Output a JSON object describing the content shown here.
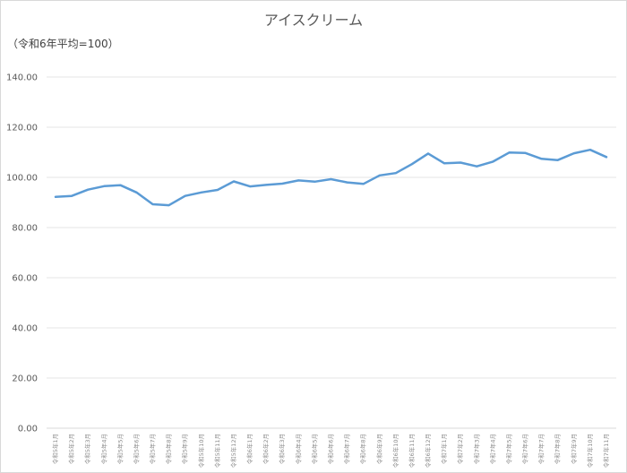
{
  "chart_data": {
    "type": "line",
    "title": "アイスクリーム",
    "subtitle": "（令和6年平均=100）",
    "xlabel": "",
    "ylabel": "",
    "ylim": [
      0,
      140
    ],
    "yticks": [
      0,
      20,
      40,
      60,
      80,
      100,
      120,
      140
    ],
    "ytick_labels": [
      "0.00",
      "20.00",
      "40.00",
      "60.00",
      "80.00",
      "100.00",
      "120.00",
      "140.00"
    ],
    "grid": true,
    "legend": "none",
    "color": "#5b9bd5",
    "categories": [
      "令和5年1月",
      "令和5年2月",
      "令和5年3月",
      "令和5年4月",
      "令和5年5月",
      "令和5年6月",
      "令和5年7月",
      "令和5年8月",
      "令和5年9月",
      "令和5年10月",
      "令和5年11月",
      "令和5年12月",
      "令和6年1月",
      "令和6年2月",
      "令和6年3月",
      "令和6年4月",
      "令和6年5月",
      "令和6年6月",
      "令和6年7月",
      "令和6年8月",
      "令和6年9月",
      "令和6年10月",
      "令和6年11月",
      "令和6年12月",
      "令和7年1月",
      "令和7年2月",
      "令和7年3月",
      "令和7年4月",
      "令和7年5月",
      "令和7年6月",
      "令和7年7月",
      "令和7年8月",
      "令和7年9月",
      "令和7年10月",
      "令和7年11月"
    ],
    "values": [
      92.2,
      92.6,
      95.1,
      96.5,
      96.9,
      94.0,
      89.3,
      88.9,
      92.6,
      94.0,
      95.0,
      98.4,
      96.4,
      97.0,
      97.5,
      98.8,
      98.3,
      99.3,
      98.0,
      97.4,
      100.8,
      101.7,
      105.3,
      109.5,
      105.6,
      105.9,
      104.4,
      106.3,
      109.9,
      109.7,
      107.4,
      106.9,
      109.6,
      111.0,
      108.1
    ]
  }
}
